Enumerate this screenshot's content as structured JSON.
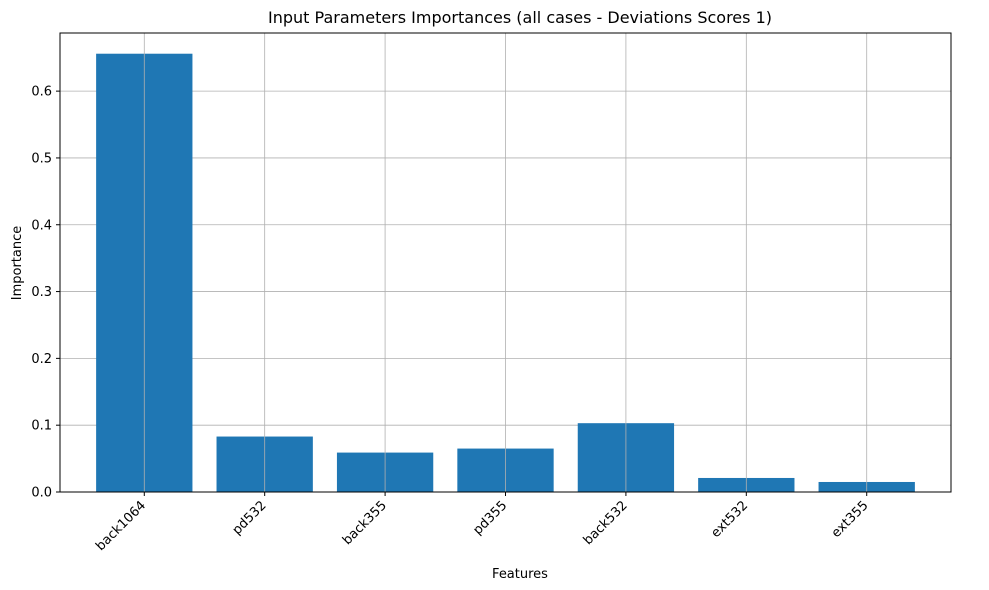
{
  "chart_data": {
    "type": "bar",
    "title": "Input Parameters Importances (all cases - Deviations Scores 1)",
    "xlabel": "Features",
    "ylabel": "Importance",
    "categories": [
      "back1064",
      "pd532",
      "back355",
      "pd355",
      "back532",
      "ext532",
      "ext355"
    ],
    "values": [
      0.656,
      0.083,
      0.059,
      0.065,
      0.103,
      0.021,
      0.015
    ],
    "ylim": [
      0,
      0.687
    ],
    "yticks": [
      0.0,
      0.1,
      0.2,
      0.3,
      0.4,
      0.5,
      0.6
    ],
    "ytick_labels": [
      "0.0",
      "0.1",
      "0.2",
      "0.3",
      "0.4",
      "0.5",
      "0.6"
    ],
    "grid": true,
    "bar_color": "#1f77b4",
    "xtick_rotation": "45"
  }
}
